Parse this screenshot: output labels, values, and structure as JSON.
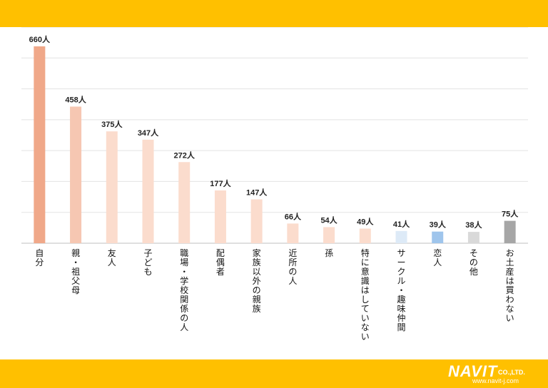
{
  "chart_data": {
    "type": "bar",
    "unit": "人",
    "ylim": [
      0,
      660
    ],
    "grid": true,
    "categories": [
      "自分",
      "親・祖父母",
      "友人",
      "子ども",
      "職場・学校関係の人",
      "配偶者",
      "家族以外の親族",
      "近所の人",
      "孫",
      "特に意識はしていない",
      "サークル・趣味仲間",
      "恋人",
      "その他",
      "お土産は買わない"
    ],
    "values": [
      660,
      458,
      375,
      347,
      272,
      177,
      147,
      66,
      54,
      49,
      41,
      39,
      38,
      75
    ],
    "colors": [
      "#f0a889",
      "#f6c7b2",
      "#fbdccd",
      "#fbdccd",
      "#fbdccd",
      "#fbdccd",
      "#fbdccd",
      "#fbdccd",
      "#fbdccd",
      "#fbdccd",
      "#ddeaf7",
      "#9fc5ec",
      "#d9d9d9",
      "#a6a6a6"
    ]
  },
  "branding": {
    "logo_text": "NAVIT",
    "company_suffix": "CO.,LTD.",
    "url": "www.navit-j.com"
  }
}
